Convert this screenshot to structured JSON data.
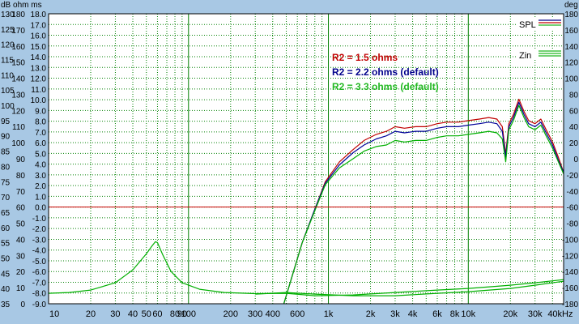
{
  "colors": {
    "background": "#a8c8e4",
    "plot_bg": "#ffffff",
    "grid": "#008000",
    "zero_line": "#cc0000",
    "series_red": "#c00000",
    "series_blue": "#000099",
    "series_green": "#00b000",
    "legend_red": "#c00000",
    "legend_blue": "#00008b",
    "legend_green": "#22b822"
  },
  "header": {
    "left_units": "dB  ohm ms",
    "right_units": "deg"
  },
  "chart_data": {
    "type": "line",
    "x_scale": "log",
    "xlim": [
      10,
      48000
    ],
    "ylim_db": [
      35,
      130
    ],
    "ylim_ohm": [
      0,
      180
    ],
    "ylim_ms": [
      -9.0,
      18.0
    ],
    "ylim_deg": [
      -180,
      180
    ],
    "grid": true,
    "x_tick_labels": [
      {
        "v": 10,
        "label": "10"
      },
      {
        "v": 20,
        "label": "20"
      },
      {
        "v": 30,
        "label": "30"
      },
      {
        "v": 40,
        "label": "40"
      },
      {
        "v": 50,
        "label": "50"
      },
      {
        "v": 60,
        "label": "60"
      },
      {
        "v": 80,
        "label": "80"
      },
      {
        "v": 90,
        "label": "90"
      },
      {
        "v": 100,
        "label": "100"
      },
      {
        "v": 200,
        "label": "200"
      },
      {
        "v": 300,
        "label": "300"
      },
      {
        "v": 400,
        "label": "400"
      },
      {
        "v": 600,
        "label": "600"
      },
      {
        "v": 1000,
        "label": "1k"
      },
      {
        "v": 2000,
        "label": "2k"
      },
      {
        "v": 3000,
        "label": "3k"
      },
      {
        "v": 4000,
        "label": "4k"
      },
      {
        "v": 6000,
        "label": "6k"
      },
      {
        "v": 8000,
        "label": "8k"
      },
      {
        "v": 10000,
        "label": "10k"
      },
      {
        "v": 20000,
        "label": "20k"
      },
      {
        "v": 30000,
        "label": "30k"
      },
      {
        "v": 40000,
        "label": "40kHz"
      }
    ],
    "y_db_ticks": [
      35,
      40,
      45,
      50,
      55,
      60,
      65,
      70,
      75,
      80,
      85,
      90,
      95,
      100,
      105,
      110,
      115,
      120,
      125,
      130
    ],
    "y_ohm_ticks": [
      0,
      10,
      20,
      30,
      40,
      50,
      60,
      70,
      80,
      90,
      100,
      110,
      120,
      130,
      140,
      150,
      160,
      170,
      180
    ],
    "y_ms_ticks": [
      "-9.0",
      "-8.0",
      "-7.0",
      "-6.0",
      "-5.0",
      "-4.0",
      "-3.0",
      "-2.0",
      "-1.0",
      "0.0",
      "1.0",
      "2.0",
      "3.0",
      "4.0",
      "5.0",
      "6.0",
      "7.0",
      "8.0",
      "9.0",
      "10.0",
      "11.0",
      "12.0",
      "13.0",
      "14.0",
      "15.0",
      "16.0",
      "17.0",
      "18.0"
    ],
    "y_ms_tick_values": [
      -9,
      -8,
      -7,
      -6,
      -5,
      -4,
      -3,
      -2,
      -1,
      0,
      1,
      2,
      3,
      4,
      5,
      6,
      7,
      8,
      9,
      10,
      11,
      12,
      13,
      14,
      15,
      16,
      17,
      18
    ],
    "y_deg_ticks": [
      -180,
      -160,
      -140,
      -120,
      -100,
      -80,
      -60,
      -40,
      -20,
      0,
      20,
      40,
      60,
      80,
      100,
      120,
      140,
      160,
      180
    ],
    "zero_line_ms": 0.0,
    "legend": {
      "placement": "top-right",
      "entries": [
        {
          "label": "SPL",
          "colors": [
            "#00008b",
            "#c00000",
            "#22b822"
          ]
        },
        {
          "label": "Zin",
          "colors": [
            "#22b822",
            "#22b822",
            "#22b822"
          ]
        }
      ]
    },
    "annotations": [
      {
        "text": "R2 = 1.5 ohms",
        "color": "#c00000"
      },
      {
        "text": "R2 = 2.2 ohms (default)",
        "color": "#00008b"
      },
      {
        "text": "R2 = 3.3 ohms (default)",
        "color": "#22b822"
      }
    ],
    "series": [
      {
        "unit": "dB",
        "color": "#c00000",
        "x": [
          480,
          550,
          650,
          800,
          950,
          1200,
          1500,
          1800,
          2200,
          2600,
          3000,
          3500,
          4200,
          5000,
          6000,
          7000,
          8500,
          10000,
          12000,
          14000,
          16000,
          17500,
          18500,
          19500,
          21000,
          23000,
          25000,
          27000,
          30000,
          33000,
          36000,
          40000,
          44000,
          48000
        ],
        "y": [
          35,
          44,
          55,
          66,
          75,
          81.5,
          85.5,
          88.5,
          90.5,
          91.5,
          93,
          92.5,
          93,
          93,
          94,
          94.5,
          94.5,
          95,
          95.5,
          96,
          95.5,
          93,
          84,
          94,
          97,
          102,
          98,
          95,
          94,
          95.5,
          92,
          88,
          83,
          78
        ]
      },
      {
        "unit": "dB",
        "color": "#000099",
        "x": [
          480,
          550,
          650,
          800,
          950,
          1200,
          1500,
          1800,
          2200,
          2600,
          3000,
          3500,
          4200,
          5000,
          6000,
          7000,
          8500,
          10000,
          12000,
          14000,
          16000,
          17500,
          18500,
          19500,
          21000,
          23000,
          25000,
          27000,
          30000,
          33000,
          36000,
          40000,
          44000,
          48000
        ],
        "y": [
          35,
          44,
          55,
          66,
          74.5,
          80.5,
          84.5,
          87,
          89,
          90,
          91.5,
          91,
          91.5,
          91.5,
          92.5,
          93,
          93,
          93.5,
          94,
          94.5,
          94,
          91.5,
          83,
          93,
          96,
          101,
          97,
          94,
          93,
          94.5,
          91,
          87,
          82,
          78
        ]
      },
      {
        "unit": "dB",
        "color": "#00b000",
        "x": [
          480,
          550,
          650,
          800,
          950,
          1200,
          1500,
          1800,
          2200,
          2600,
          3000,
          3500,
          4200,
          5000,
          6000,
          7000,
          8500,
          10000,
          12000,
          14000,
          16000,
          17500,
          18500,
          19500,
          21000,
          23000,
          25000,
          27000,
          30000,
          33000,
          36000,
          40000,
          44000,
          48000
        ],
        "y": [
          35,
          44,
          55,
          65.5,
          74,
          79.5,
          82.5,
          85,
          86.5,
          87,
          88.5,
          88,
          88.5,
          88.5,
          89.5,
          90,
          90,
          90.5,
          91,
          91.5,
          91,
          89,
          81.5,
          92,
          95,
          100,
          96,
          93,
          92,
          93.5,
          90,
          86,
          81.5,
          77.5
        ]
      },
      {
        "unit": "ohm",
        "color": "#00b000",
        "x": [
          10,
          14,
          20,
          30,
          40,
          50,
          55,
          58,
          60,
          65,
          75,
          90,
          120,
          180,
          300,
          500,
          800,
          1500,
          3000,
          6000,
          10000,
          20000,
          30000,
          48000
        ],
        "y": [
          6.5,
          7,
          8.5,
          13,
          21,
          31,
          36,
          38.5,
          38,
          31,
          20,
          13,
          9,
          7,
          6.3,
          6.5,
          5,
          5.5,
          7,
          8.5,
          9.5,
          11.5,
          13,
          15
        ]
      },
      {
        "unit": "ohm",
        "color": "#00b000",
        "x": [
          300,
          500,
          800,
          1500,
          3000,
          6000,
          10000,
          20000,
          30000,
          48000
        ],
        "y": [
          6,
          7,
          6,
          5,
          5,
          6.5,
          7.5,
          9.5,
          11.5,
          14
        ]
      }
    ]
  }
}
